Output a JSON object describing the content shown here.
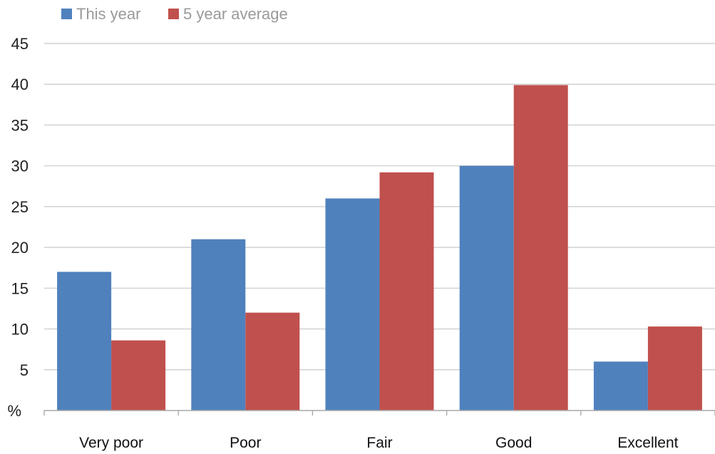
{
  "chart_data": {
    "type": "bar",
    "categories": [
      "Very poor",
      "Poor",
      "Fair",
      "Good",
      "Excellent"
    ],
    "series": [
      {
        "name": "This year",
        "color": "#4f81bd",
        "values": [
          17,
          21,
          26,
          30,
          6
        ]
      },
      {
        "name": "5 year average",
        "color": "#c0504d",
        "values": [
          8.6,
          12,
          29.2,
          39.9,
          10.3
        ]
      }
    ],
    "ylim": [
      0,
      45
    ],
    "yticks": [
      5,
      10,
      15,
      20,
      25,
      30,
      35,
      40,
      45
    ],
    "y_zero_label": "%",
    "grid": true,
    "legend": "top-left"
  }
}
